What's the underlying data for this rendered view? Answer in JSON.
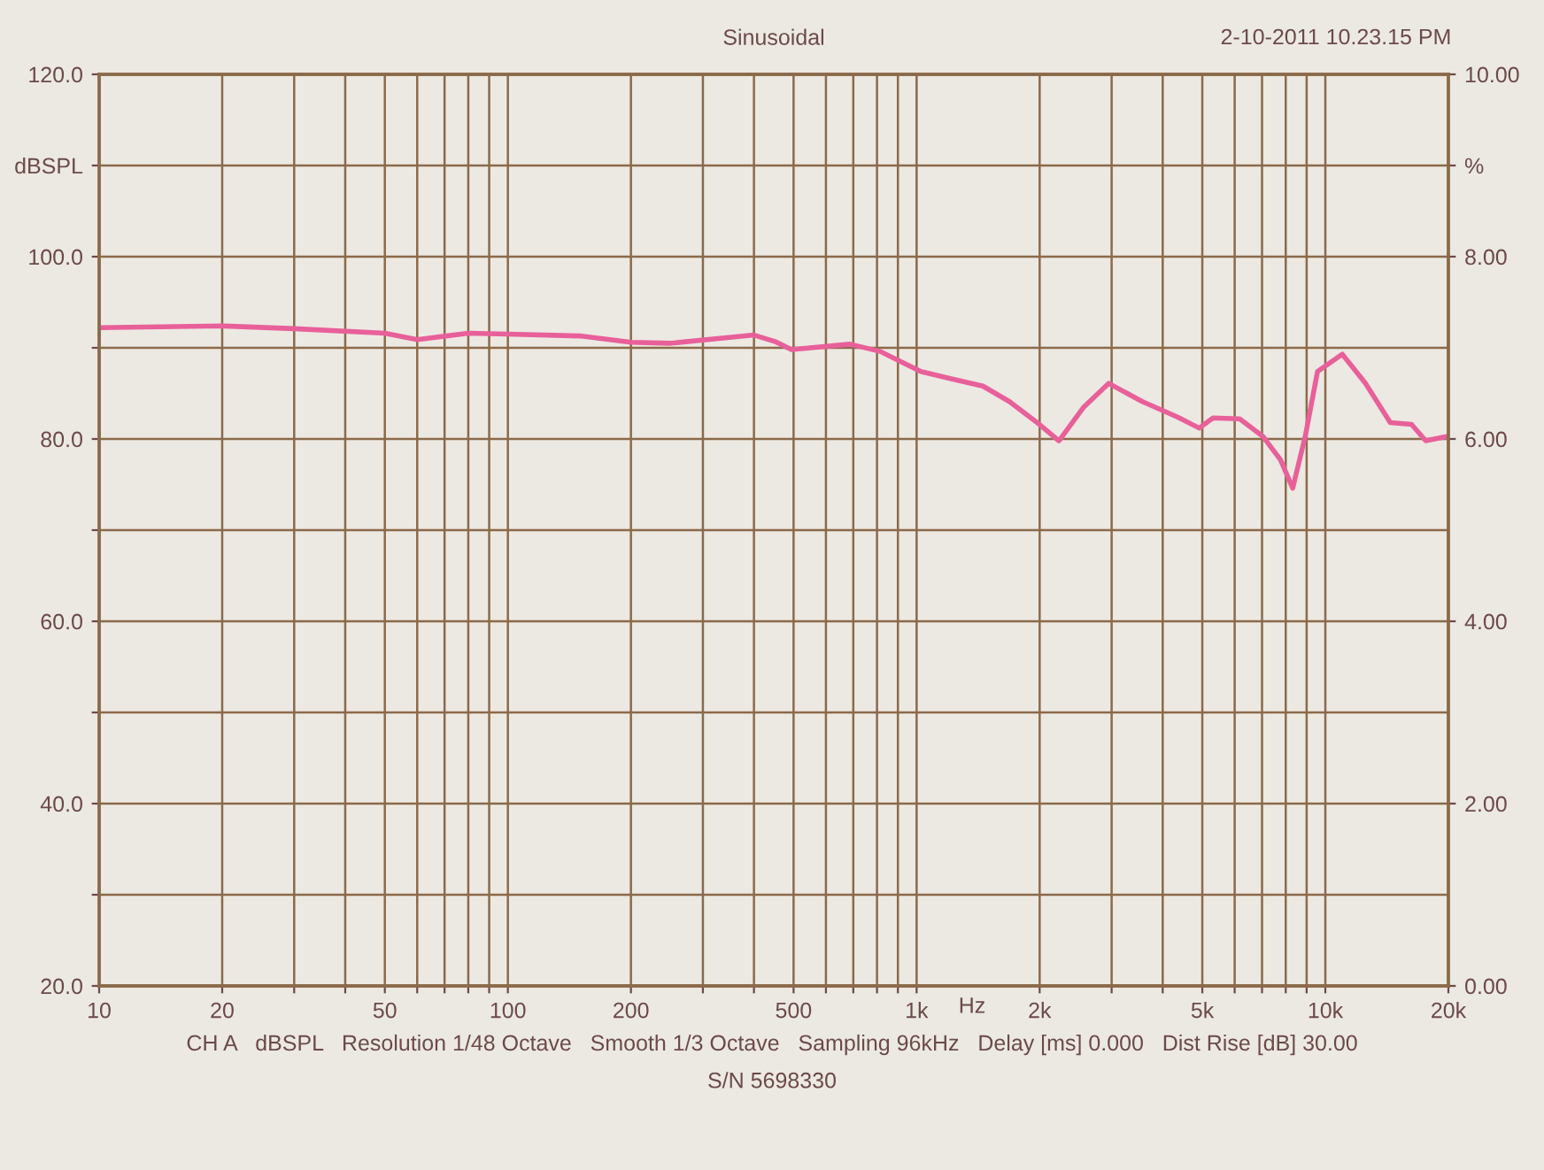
{
  "chart_data": {
    "type": "line",
    "title": "Sinusoidal",
    "xlabel": "Hz",
    "log": "x",
    "annotations": [
      "2-10-2011 10.23.15 PM",
      "CH A   dBSPL   Resolution 1/48 Octave   Smooth 1/3 Octave   Sampling 96kHz   Delay [ms] 0.000   Dist Rise [dB] 30.00",
      "S/N 5698330"
    ],
    "series": [
      {
        "color": "#e8609a",
        "x": [
          10,
          20,
          30,
          50,
          60,
          80,
          100,
          150,
          200,
          250,
          400,
          450,
          494,
          687,
          815,
          1024,
          1190,
          1453,
          1687,
          1959,
          2230,
          2564,
          2950,
          3567,
          4350,
          4910,
          5310,
          6170,
          7030,
          7770,
          8320,
          8930,
          9570,
          11000,
          12540,
          14420,
          16250,
          17600,
          20000
        ],
        "values": [
          92.2,
          92.4,
          92.1,
          91.6,
          90.9,
          91.6,
          91.5,
          91.3,
          90.6,
          90.5,
          91.4,
          90.7,
          89.8,
          90.4,
          89.6,
          87.4,
          86.7,
          85.8,
          84.1,
          81.9,
          79.8,
          83.5,
          86.1,
          84.1,
          82.4,
          81.2,
          82.3,
          82.2,
          80.3,
          77.7,
          74.6,
          80.3,
          87.4,
          89.3,
          86.1,
          81.8,
          81.6,
          79.8,
          80.3
        ]
      }
    ],
    "xlim": [
      10,
      20000
    ],
    "xticks": [
      10,
      20,
      {
        "value": 30,
        "label": null
      },
      {
        "value": 40,
        "label": null
      },
      50,
      {
        "value": 60,
        "label": null
      },
      {
        "value": 70,
        "label": null
      },
      {
        "value": 80,
        "label": null
      },
      {
        "value": 90,
        "label": null
      },
      100,
      200,
      {
        "value": 300,
        "label": null
      },
      {
        "value": 400,
        "label": null
      },
      500,
      {
        "value": 600,
        "label": null
      },
      {
        "value": 700,
        "label": null
      },
      {
        "value": 800,
        "label": null
      },
      {
        "value": 900,
        "label": null
      },
      {
        "value": 1000,
        "label": "1k"
      },
      {
        "value": 2000,
        "label": "2k"
      },
      {
        "value": 3000,
        "label": null
      },
      {
        "value": 4000,
        "label": null
      },
      {
        "value": 5000,
        "label": "5k"
      },
      {
        "value": 6000,
        "label": null
      },
      {
        "value": 7000,
        "label": null
      },
      {
        "value": 8000,
        "label": null
      },
      {
        "value": 9000,
        "label": null
      },
      {
        "value": 10000,
        "label": "10k"
      },
      {
        "value": 20000,
        "label": "20k"
      }
    ],
    "ylim": [
      20,
      120
    ],
    "yticks": [
      {
        "value": 20,
        "label": "20.0"
      },
      {
        "value": 30,
        "label": null
      },
      {
        "value": 40,
        "label": "40.0"
      },
      {
        "value": 50,
        "label": null
      },
      {
        "value": 60,
        "label": "60.0"
      },
      {
        "value": 70,
        "label": null
      },
      {
        "value": 80,
        "label": "80.0"
      },
      {
        "value": 90,
        "label": null
      },
      {
        "value": 100,
        "label": "100.0"
      },
      {
        "value": 110,
        "label": "dBSPL"
      },
      {
        "value": 120,
        "label": "120.0"
      }
    ],
    "y2lim": [
      0,
      10
    ],
    "y2ticks": [
      {
        "value": 0,
        "label": "0.00"
      },
      {
        "value": 2,
        "label": "2.00"
      },
      {
        "value": 4,
        "label": "4.00"
      },
      {
        "value": 6,
        "label": "6.00"
      },
      {
        "value": 8,
        "label": "8.00"
      },
      {
        "value": 9,
        "label": "%"
      },
      {
        "value": 10,
        "label": "10.00"
      }
    ],
    "grid": true,
    "legend": false,
    "marker": "none",
    "line_style": "solid"
  }
}
